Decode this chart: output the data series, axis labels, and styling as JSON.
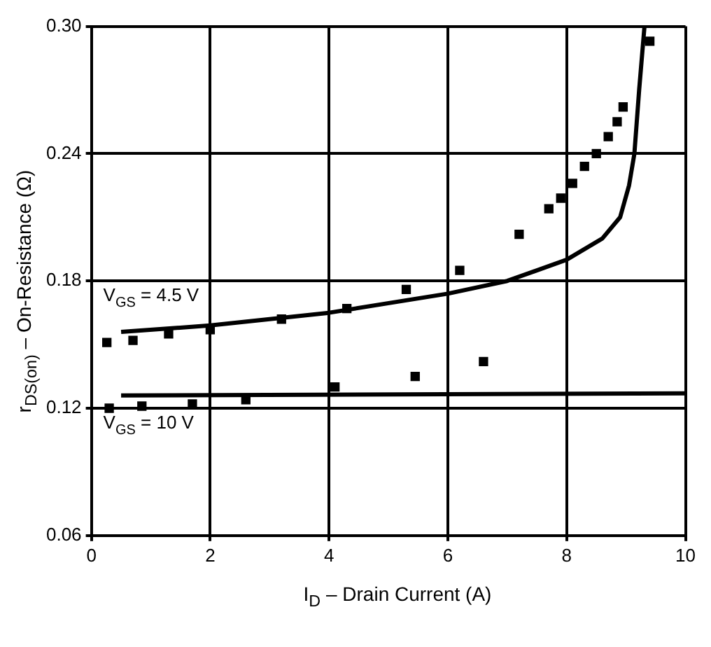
{
  "chart_data": {
    "type": "scatter",
    "xlabel": "I$_{D}$ – Drain Current (A)",
    "ylabel": "r$_{DS(on)}$ – On-Resistance (Ω)",
    "xlim": [
      0,
      10
    ],
    "xticks": [
      0,
      2,
      4,
      6,
      8,
      10
    ],
    "ylim": [
      0.06,
      0.3
    ],
    "yticks": [
      0.06,
      0.12,
      0.18,
      0.24,
      {
        "value": 0.3,
        "label": "0.30"
      }
    ],
    "grid": true,
    "legend": false,
    "marker": "square",
    "series": [
      {
        "type": "line",
        "color": "#000000",
        "marker": "none",
        "x": [
          0.5,
          2,
          4,
          6,
          7,
          8,
          8.6,
          8.9,
          9.05,
          9.14,
          9.22,
          9.31
        ],
        "values": [
          0.156,
          0.159,
          0.165,
          0.174,
          0.18,
          0.19,
          0.2,
          0.21,
          0.225,
          0.24,
          0.27,
          0.3
        ]
      },
      {
        "type": "line",
        "color": "#000000",
        "marker": "none",
        "x": [
          0.5,
          10
        ],
        "values": [
          0.126,
          0.127
        ]
      },
      {
        "type": "scatter",
        "color": "#000000",
        "x": [
          0.26,
          0.7,
          1.3,
          2,
          3.2,
          4.3,
          5.3,
          6.2,
          7.2,
          7.7,
          7.9,
          8.1,
          8.3,
          8.5,
          8.7,
          8.85,
          8.95,
          9.4
        ],
        "values": [
          0.151,
          0.152,
          0.155,
          0.157,
          0.162,
          0.167,
          0.176,
          0.185,
          0.202,
          0.214,
          0.219,
          0.226,
          0.234,
          0.24,
          0.248,
          0.255,
          0.262,
          0.293
        ]
      },
      {
        "type": "scatter",
        "color": "#000000",
        "x": [
          0.3,
          0.85,
          1.7,
          2.6,
          4.1,
          5.45,
          6.6
        ],
        "values": [
          0.12,
          0.121,
          0.122,
          0.124,
          0.13,
          0.135,
          0.142
        ]
      }
    ],
    "annotations": [
      "V$_{GS}$ = 4.5 V",
      "V$_{GS}$ = 10 V"
    ]
  }
}
